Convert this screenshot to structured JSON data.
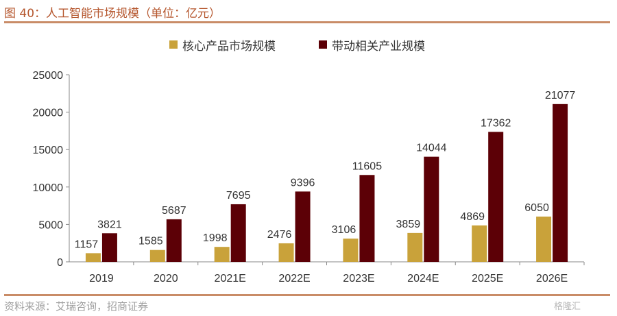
{
  "figure": {
    "title": "图 40：人工智能市场规模（单位：亿元）",
    "source": "资料来源：艾瑞咨询，招商证券",
    "watermark": "格隆汇"
  },
  "chart_data": {
    "type": "bar",
    "categories": [
      "2019",
      "2020",
      "2021E",
      "2022E",
      "2023E",
      "2024E",
      "2025E",
      "2026E"
    ],
    "series": [
      {
        "name": "核心产品市场规模",
        "color": "#c9a23a",
        "values": [
          1157,
          1585,
          1998,
          2476,
          3106,
          3859,
          4869,
          6050
        ]
      },
      {
        "name": "带动相关产业规模",
        "color": "#5c0006",
        "values": [
          3821,
          5687,
          7695,
          9396,
          11605,
          14044,
          17362,
          21077
        ]
      }
    ],
    "yticks": [
      0,
      5000,
      10000,
      15000,
      20000,
      25000
    ],
    "ylim": [
      0,
      25000
    ],
    "legend_position": "top",
    "grid": false
  }
}
